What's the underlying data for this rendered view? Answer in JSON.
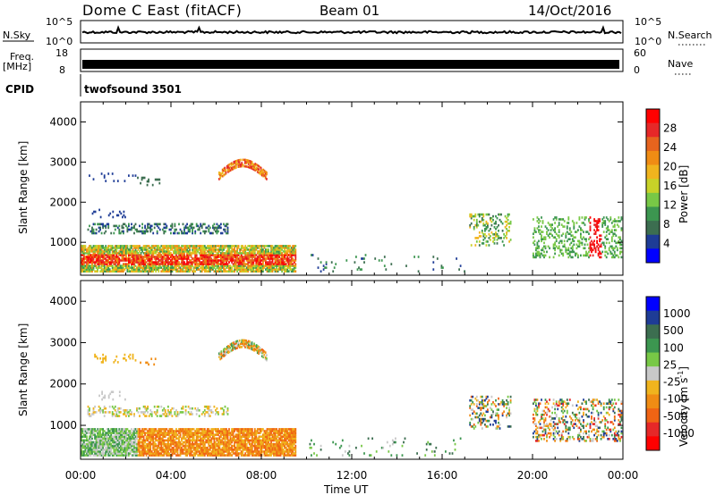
{
  "header": {
    "radar_title": "Dome C East (fitACF)",
    "beam": "Beam 01",
    "date": "14/Oct/2016"
  },
  "panels": {
    "nsky_label": "N.Sky",
    "nsky_ticks": [
      "10^5",
      "10^0"
    ],
    "nsearch_label": "N.Search",
    "nsearch_ticks": [
      "10^5",
      "10^0"
    ],
    "freq_label_1": "Freq.",
    "freq_label_2": "[MHz]",
    "freq_ticks": [
      "18",
      "8"
    ],
    "nave_label": "Nave",
    "nave_ticks": [
      "60",
      "0"
    ],
    "cpid_label": "CPID",
    "cpid_value": "twofsound 3501"
  },
  "legend_colors": {
    "power": [
      "#0000ff",
      "#1e3c96",
      "#3c6e50",
      "#3c9650",
      "#78c846",
      "#c8d228",
      "#f0b41e",
      "#f08c14",
      "#e6641e",
      "#e62828",
      "#ff0000"
    ],
    "velocity": [
      "#ff0000",
      "#e62828",
      "#f06414",
      "#f08c14",
      "#f0b41e",
      "#c8c8c8",
      "#78c846",
      "#3c9650",
      "#3c6e50",
      "#1e3c96",
      "#0000ff"
    ]
  },
  "chart_data": [
    {
      "type": "heatmap",
      "name": "power",
      "xlabel": "",
      "ylabel": "Slant Range [km]",
      "yticks": [
        "1000",
        "2000",
        "3000",
        "4000"
      ],
      "ylim": [
        180,
        4500
      ],
      "colorbar_label": "Power [dB]",
      "colorbar_ticks": [
        "4",
        "8",
        "12",
        "16",
        "20",
        "24",
        "28"
      ],
      "colorbar_range": [
        0,
        30
      ]
    },
    {
      "type": "heatmap",
      "name": "velocity",
      "xlabel": "Time UT",
      "ylabel": "Slant Range [km]",
      "yticks": [
        "1000",
        "2000",
        "3000",
        "4000"
      ],
      "ylim": [
        180,
        4500
      ],
      "xticks": [
        "00:00",
        "04:00",
        "08:00",
        "12:00",
        "16:00",
        "20:00",
        "00:00"
      ],
      "xlim_hours": [
        0,
        24
      ],
      "colorbar_label": "Velocity [m s",
      "colorbar_label_sup": "-1",
      "colorbar_label_tail": "]",
      "colorbar_ticks": [
        "1000",
        "500",
        "100",
        "25",
        "-25",
        "-100",
        "-500",
        "-1000"
      ]
    }
  ]
}
